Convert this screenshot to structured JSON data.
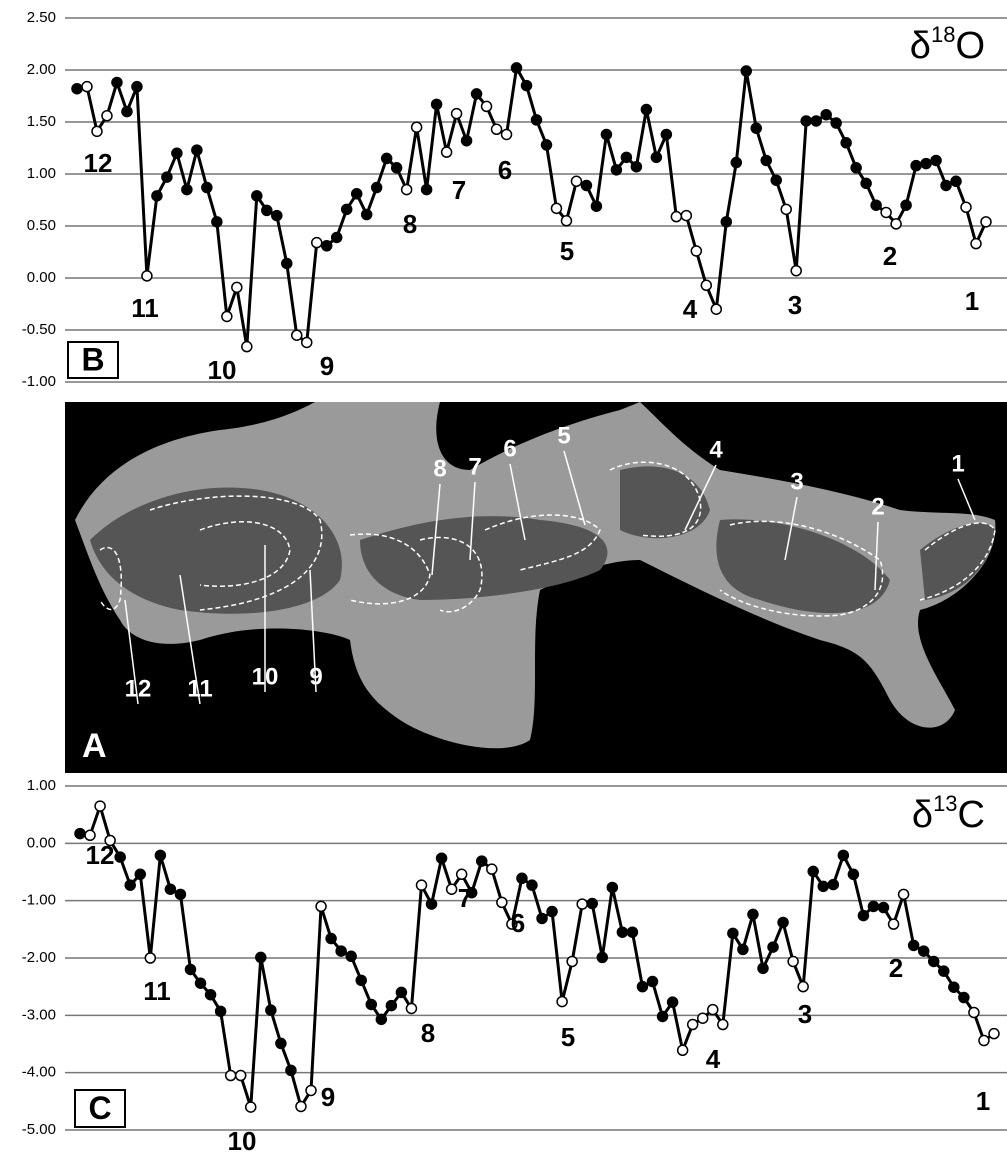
{
  "chart_data": [
    {
      "type": "line",
      "panel": "B",
      "title_parts": [
        "δ",
        "18",
        "O"
      ],
      "color": "#000000",
      "grid": true,
      "ylim": [
        -1,
        2.5
      ],
      "yticks": [
        {
          "value": -1,
          "label": "-1.00"
        },
        {
          "value": -0.5,
          "label": "-0.50"
        },
        {
          "value": 0,
          "label": "0.00"
        },
        {
          "value": 0.5,
          "label": "0.50"
        },
        {
          "value": 1,
          "label": "1.00"
        },
        {
          "value": 1.5,
          "label": "1.50"
        },
        {
          "value": 2,
          "label": "2.00"
        },
        {
          "value": 2.5,
          "label": "2.50"
        }
      ],
      "annotations": [
        "12",
        "11",
        "10",
        "9",
        "8",
        "7",
        "6",
        "5",
        "4",
        "3",
        "2",
        "1"
      ],
      "values": [
        1.82,
        1.84,
        1.41,
        1.56,
        1.88,
        1.6,
        1.84,
        0.02,
        0.79,
        0.97,
        1.2,
        0.85,
        1.23,
        0.87,
        0.54,
        -0.37,
        -0.09,
        -0.66,
        0.79,
        0.65,
        0.6,
        0.14,
        -0.55,
        -0.62,
        0.34,
        0.31,
        0.39,
        0.66,
        0.81,
        0.61,
        0.87,
        1.15,
        1.06,
        0.85,
        1.45,
        0.85,
        1.67,
        1.21,
        1.58,
        1.32,
        1.77,
        1.65,
        1.43,
        1.38,
        2.02,
        1.85,
        1.52,
        1.28,
        0.67,
        0.55,
        0.93,
        0.89,
        0.69,
        1.38,
        1.04,
        1.16,
        1.07,
        1.62,
        1.16,
        1.38,
        0.59,
        0.6,
        0.26,
        -0.07,
        -0.3,
        0.54,
        1.11,
        1.99,
        1.44,
        1.13,
        0.94,
        0.66,
        0.07,
        1.51,
        1.51,
        1.57,
        1.49,
        1.3,
        1.06,
        0.91,
        0.7,
        0.63,
        0.52,
        0.7,
        1.08,
        1.1,
        1.13,
        0.89,
        0.93,
        0.68,
        0.33,
        0.54
      ],
      "hollow": [
        false,
        true,
        true,
        true,
        false,
        false,
        false,
        true,
        false,
        false,
        false,
        false,
        false,
        false,
        false,
        true,
        true,
        true,
        false,
        false,
        false,
        false,
        true,
        true,
        true,
        false,
        false,
        false,
        false,
        false,
        false,
        false,
        false,
        true,
        true,
        false,
        false,
        true,
        true,
        false,
        false,
        true,
        true,
        true,
        false,
        false,
        false,
        false,
        true,
        true,
        true,
        false,
        false,
        false,
        false,
        false,
        false,
        false,
        false,
        false,
        true,
        true,
        true,
        true,
        true,
        false,
        false,
        false,
        false,
        false,
        false,
        true,
        true,
        false,
        false,
        false,
        false,
        false,
        false,
        false,
        false,
        true,
        true,
        false,
        false,
        false,
        false,
        false,
        false,
        true,
        true,
        true
      ]
    },
    {
      "type": "line",
      "panel": "C",
      "title_parts": [
        "δ",
        "13",
        "C"
      ],
      "color": "#000000",
      "grid": true,
      "ylim": [
        -5,
        1
      ],
      "yticks": [
        {
          "value": -5,
          "label": "-5.00"
        },
        {
          "value": -4,
          "label": "-4.00"
        },
        {
          "value": -3,
          "label": "-3.00"
        },
        {
          "value": -2,
          "label": "-2.00"
        },
        {
          "value": -1,
          "label": "-1.00"
        },
        {
          "value": 0,
          "label": "0.00"
        },
        {
          "value": 1,
          "label": "1.00"
        }
      ],
      "annotations": [
        "12",
        "11",
        "10",
        "9",
        "8",
        "7",
        "6",
        "5",
        "4",
        "3",
        "2",
        "1"
      ],
      "values": [
        0.17,
        0.14,
        0.65,
        0.05,
        -0.24,
        -0.73,
        -0.54,
        -2.0,
        -0.21,
        -0.8,
        -0.89,
        -2.2,
        -2.44,
        -2.64,
        -2.93,
        -4.05,
        -4.05,
        -4.6,
        -1.99,
        -2.91,
        -3.49,
        -3.96,
        -4.59,
        -4.31,
        -1.1,
        -1.66,
        -1.88,
        -1.97,
        -2.39,
        -2.81,
        -3.07,
        -2.83,
        -2.6,
        -2.88,
        -0.73,
        -1.06,
        -0.26,
        -0.8,
        -0.54,
        -0.86,
        -0.31,
        -0.45,
        -1.03,
        -1.41,
        -0.61,
        -0.73,
        -1.31,
        -1.19,
        -2.76,
        -2.06,
        -1.06,
        -1.05,
        -1.99,
        -0.77,
        -1.55,
        -1.55,
        -2.5,
        -2.41,
        -3.02,
        -2.77,
        -3.61,
        -3.16,
        -3.05,
        -2.9,
        -3.16,
        -1.57,
        -1.85,
        -1.24,
        -2.18,
        -1.81,
        -1.38,
        -2.06,
        -2.5,
        -0.49,
        -0.75,
        -0.72,
        -0.21,
        -0.54,
        -1.26,
        -1.1,
        -1.12,
        -1.41,
        -0.89,
        -1.78,
        -1.88,
        -2.06,
        -2.23,
        -2.51,
        -2.69,
        -2.95,
        -3.44,
        -3.32
      ],
      "hollow": [
        false,
        true,
        true,
        true,
        false,
        false,
        false,
        true,
        false,
        false,
        false,
        false,
        false,
        false,
        false,
        true,
        true,
        true,
        false,
        false,
        false,
        false,
        true,
        true,
        true,
        false,
        false,
        false,
        false,
        false,
        false,
        false,
        false,
        true,
        true,
        false,
        false,
        true,
        true,
        false,
        false,
        true,
        true,
        true,
        false,
        false,
        false,
        false,
        true,
        true,
        true,
        false,
        false,
        false,
        false,
        false,
        false,
        false,
        false,
        false,
        true,
        true,
        true,
        true,
        true,
        false,
        false,
        false,
        false,
        false,
        false,
        true,
        true,
        false,
        false,
        false,
        false,
        false,
        false,
        false,
        false,
        true,
        true,
        false,
        false,
        false,
        false,
        false,
        false,
        true,
        true,
        true
      ]
    }
  ],
  "photo": {
    "panel": "A",
    "labels": [
      "1",
      "2",
      "3",
      "4",
      "5",
      "6",
      "7",
      "8",
      "9",
      "10",
      "11",
      "12"
    ]
  }
}
